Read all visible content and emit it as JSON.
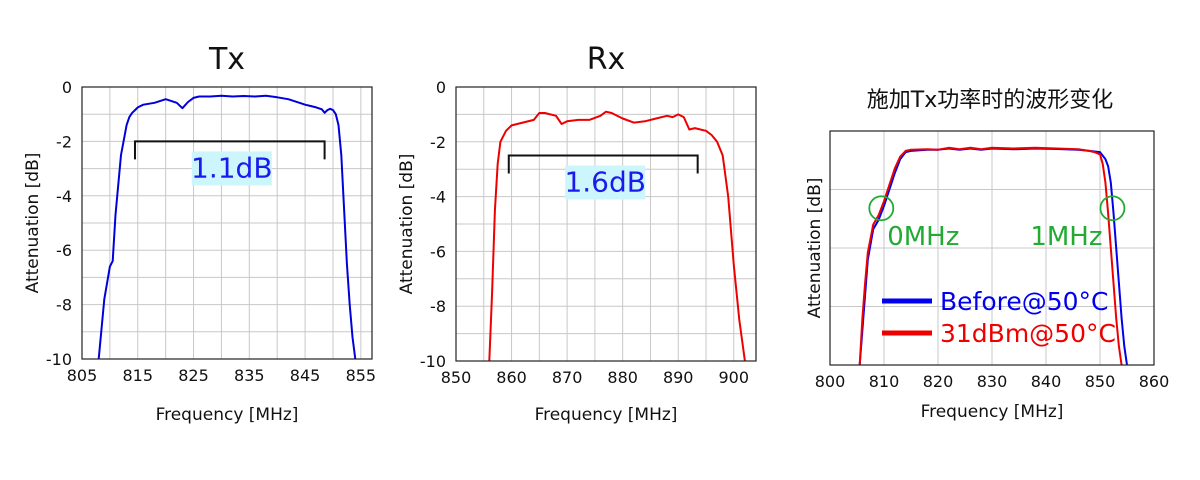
{
  "chart_data": [
    {
      "id": "tx",
      "type": "line",
      "title": "Tx",
      "xlabel": "Frequency [MHz]",
      "ylabel": "Attenuation [dB]",
      "xlim": [
        805,
        857
      ],
      "ylim": [
        -10,
        0
      ],
      "xticks": [
        805,
        815,
        825,
        835,
        845,
        855
      ],
      "xtick_labels": [
        "805",
        "815",
        "825",
        "835",
        "845",
        "855"
      ],
      "yticks": [
        0,
        -2,
        -4,
        -6,
        -8,
        -10
      ],
      "ytick_labels": [
        "0",
        "-2",
        "-4",
        "-6",
        "-8",
        "-10"
      ],
      "grid_xstep": 5,
      "grid_ystep": 1,
      "series": [
        {
          "name": "Tx",
          "color": "#0000dd",
          "x": [
            808,
            809,
            810,
            810.5,
            811,
            812,
            813,
            813.5,
            814,
            814.5,
            815,
            815.5,
            816,
            818,
            820,
            822,
            823,
            824,
            825,
            826,
            828,
            830,
            832,
            834,
            836,
            838,
            840,
            842,
            844,
            845,
            846,
            847,
            848,
            848.5,
            849,
            849.5,
            850,
            850.5,
            851,
            851.5,
            852,
            852.5,
            853,
            853.5,
            854
          ],
          "y": [
            -10,
            -7.8,
            -6.6,
            -6.4,
            -4.7,
            -2.5,
            -1.4,
            -1.1,
            -0.95,
            -0.85,
            -0.75,
            -0.7,
            -0.65,
            -0.58,
            -0.45,
            -0.58,
            -0.78,
            -0.55,
            -0.4,
            -0.35,
            -0.35,
            -0.32,
            -0.35,
            -0.33,
            -0.35,
            -0.32,
            -0.38,
            -0.45,
            -0.58,
            -0.65,
            -0.7,
            -0.75,
            -0.82,
            -0.95,
            -0.85,
            -0.8,
            -0.85,
            -1.0,
            -1.4,
            -2.5,
            -4.5,
            -6.5,
            -8.0,
            -9.2,
            -10
          ]
        }
      ],
      "annotations": [
        {
          "text": "1.1dB",
          "from_x": 814.5,
          "to_x": 848.5,
          "at_y": -2.0
        }
      ]
    },
    {
      "id": "rx",
      "type": "line",
      "title": "Rx",
      "xlabel": "Frequency [MHz]",
      "ylabel": "Attenuation [dB]",
      "xlim": [
        850,
        904
      ],
      "ylim": [
        -10,
        0
      ],
      "xticks": [
        850,
        860,
        870,
        880,
        890,
        900
      ],
      "xtick_labels": [
        "850",
        "860",
        "870",
        "880",
        "890",
        "900"
      ],
      "yticks": [
        0,
        -2,
        -4,
        -6,
        -8,
        -10
      ],
      "ytick_labels": [
        "0",
        "-2",
        "-4",
        "-6",
        "-8",
        "-10"
      ],
      "grid_xstep": 5,
      "grid_ystep": 1,
      "series": [
        {
          "name": "Rx",
          "color": "#ee0000",
          "x": [
            856,
            856.5,
            857,
            857.5,
            858,
            859,
            860,
            862,
            864,
            865,
            866,
            868,
            869,
            870,
            872,
            874,
            876,
            877,
            878,
            880,
            882,
            884,
            886,
            888,
            889,
            890,
            891,
            892,
            893,
            894,
            895,
            896,
            897,
            898,
            899,
            900,
            901,
            902
          ],
          "y": [
            -10,
            -7.5,
            -4.5,
            -2.8,
            -2.0,
            -1.6,
            -1.4,
            -1.3,
            -1.2,
            -0.95,
            -0.95,
            -1.05,
            -1.35,
            -1.25,
            -1.2,
            -1.2,
            -1.05,
            -0.9,
            -0.95,
            -1.15,
            -1.3,
            -1.25,
            -1.15,
            -1.05,
            -1.1,
            -1.0,
            -1.1,
            -1.55,
            -1.5,
            -1.55,
            -1.6,
            -1.75,
            -2.0,
            -2.5,
            -4.0,
            -6.5,
            -8.5,
            -10
          ]
        }
      ],
      "annotations": [
        {
          "text": "1.6dB",
          "from_x": 859.5,
          "to_x": 893.5,
          "at_y": -2.5
        }
      ]
    },
    {
      "id": "tx-power",
      "type": "line",
      "title": "施加Tx功率时的波形变化",
      "xlabel": "Frequency [MHz]",
      "ylabel": "Attenuation [dB]",
      "xlim": [
        800,
        860
      ],
      "ylim": [
        -10,
        0
      ],
      "xticks": [
        800,
        810,
        820,
        830,
        840,
        850,
        860
      ],
      "xtick_labels": [
        "800",
        "810",
        "820",
        "830",
        "840",
        "850",
        "860"
      ],
      "yticks": [],
      "ytick_labels": [],
      "grid_xstep": 10,
      "grid_ystep": 2.5,
      "series": [
        {
          "name": "Before@50°C",
          "color": "#0000ee",
          "x": [
            805.5,
            806,
            806.5,
            807,
            808,
            809,
            810,
            811,
            812,
            813,
            814,
            815,
            818,
            820,
            822,
            824,
            826,
            828,
            830,
            834,
            838,
            842,
            846,
            848,
            850,
            851,
            851.5,
            852,
            852.5,
            853,
            853.5,
            854,
            854.5,
            855
          ],
          "y": [
            -10,
            -8.5,
            -7.0,
            -5.5,
            -4.2,
            -3.8,
            -3.2,
            -2.5,
            -1.8,
            -1.2,
            -0.9,
            -0.85,
            -0.8,
            -0.8,
            -0.75,
            -0.8,
            -0.75,
            -0.8,
            -0.75,
            -0.78,
            -0.75,
            -0.77,
            -0.8,
            -0.85,
            -0.9,
            -1.2,
            -1.5,
            -2.2,
            -3.5,
            -5.0,
            -6.5,
            -8.0,
            -9.2,
            -10
          ]
        },
        {
          "name": "31dBm@50°C",
          "color": "#ee0000",
          "x": [
            805.5,
            806,
            806.5,
            807,
            808,
            809,
            810,
            811,
            812,
            813,
            814,
            815,
            818,
            820,
            822,
            824,
            826,
            828,
            830,
            834,
            838,
            842,
            846,
            848,
            849,
            850,
            850.5,
            851,
            851.5,
            852,
            852.5,
            853,
            853.5,
            854
          ],
          "y": [
            -10,
            -8.0,
            -6.5,
            -5.2,
            -4.0,
            -3.6,
            -3.0,
            -2.3,
            -1.6,
            -1.1,
            -0.85,
            -0.8,
            -0.78,
            -0.8,
            -0.72,
            -0.78,
            -0.72,
            -0.78,
            -0.72,
            -0.75,
            -0.72,
            -0.75,
            -0.78,
            -0.85,
            -0.9,
            -1.0,
            -1.4,
            -2.2,
            -3.5,
            -5.0,
            -6.5,
            -8.0,
            -9.2,
            -10
          ]
        }
      ],
      "markers": [
        {
          "label": "0MHz",
          "color": "#22aa33",
          "x": 809.5,
          "y": -3.3
        },
        {
          "label": "1MHz",
          "color": "#22aa33",
          "x": 852.3,
          "y": -3.3
        }
      ],
      "legend": "bottom-right"
    }
  ]
}
